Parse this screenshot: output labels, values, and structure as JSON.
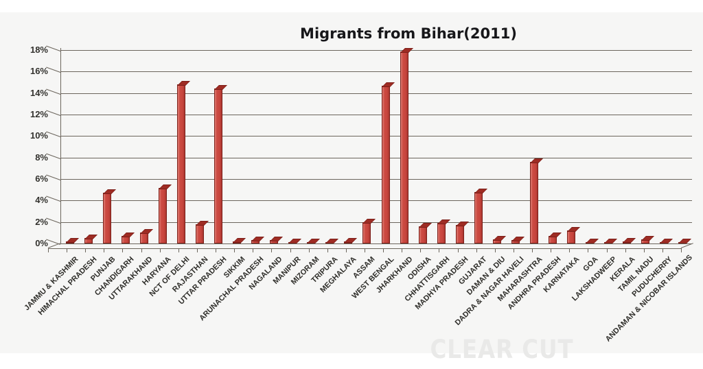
{
  "watermark": "CLEAR CUT",
  "chart_data": {
    "type": "bar",
    "style": "3d-column",
    "title": "Migrants from Bihar(2011)",
    "xlabel": "",
    "ylabel": "",
    "ylim": [
      0,
      18
    ],
    "ytick_step": 2,
    "ytick_labels": [
      "0%",
      "2%",
      "4%",
      "6%",
      "8%",
      "10%",
      "12%",
      "14%",
      "16%",
      "18%"
    ],
    "grid": true,
    "legend": false,
    "categories": [
      "JAMMU & KASHMIR",
      "HIMACHAL PRADESH",
      "PUNJAB",
      "CHANDIGARH",
      "UTTARAKHAND",
      "HARYANA",
      "NCT OF DELHI",
      "RAJASTHAN",
      "UTTAR PRADESH",
      "SIKKIM",
      "ARUNACHAL PRADESH",
      "NAGALAND",
      "MANIPUR",
      "MIZORAM",
      "TRIPURA",
      "MEGHALAYA",
      "ASSAM",
      "WEST BENGAL",
      "JHARKHAND",
      "ODISHA",
      "CHHATTISGARH",
      "MADHYA PRADESH",
      "GUJARAT",
      "DAMAN & DIU",
      "DADRA & NAGAR HAVELI",
      "MAHARASHTRA",
      "ANDHRA PRADESH",
      "KARNATAKA",
      "GOA",
      "LAKSHADWEEP",
      "KERALA",
      "TAMIL NADU",
      "PUDUCHERRY",
      "ANDAMAN & NICOBAR ISLANDS"
    ],
    "values": [
      0.2,
      0.5,
      4.7,
      0.7,
      1.0,
      5.2,
      14.8,
      1.8,
      14.4,
      0.2,
      0.3,
      0.3,
      0.1,
      0.1,
      0.15,
      0.2,
      2.0,
      14.7,
      17.9,
      1.6,
      1.9,
      1.7,
      4.8,
      0.4,
      0.3,
      7.6,
      0.7,
      1.2,
      0.1,
      0.05,
      0.2,
      0.4,
      0.1,
      0.1
    ],
    "colors": {
      "bar_face": "#c7453d",
      "bar_highlight": "#de7e74",
      "bar_shadow": "#a93630",
      "bar_top": "#9e2c24",
      "bar_edge": "#7c1f19",
      "gridline": "#6b655c",
      "plot_background": "#f6f6f5",
      "page_background": "#ffffff",
      "title_text": "#17171a",
      "axis_text": "#2e2d29",
      "watermark_text": "#e9e9e8"
    }
  }
}
